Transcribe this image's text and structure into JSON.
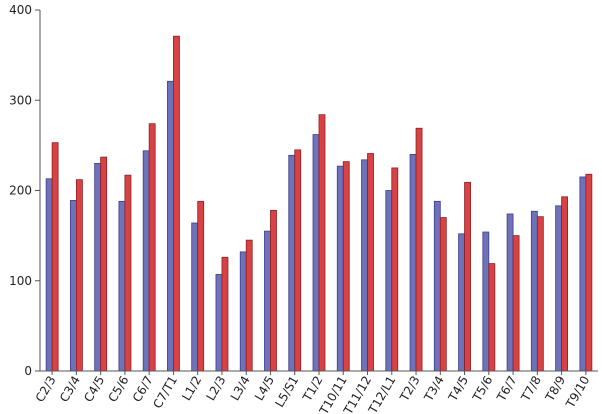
{
  "chart_data": {
    "type": "bar",
    "title": "",
    "xlabel": "",
    "ylabel": "",
    "ylim": [
      0,
      400
    ],
    "yticks": [
      0,
      100,
      200,
      300,
      400
    ],
    "grid": false,
    "categories": [
      "C2/3",
      "C3/4",
      "C4/5",
      "C5/6",
      "C6/7",
      "C7/T1",
      "L1/2",
      "L2/3",
      "L3/4",
      "L4/5",
      "L5/S1",
      "T1/2",
      "T10/11",
      "T11/12",
      "T12/L1",
      "T2/3",
      "T3/4",
      "T4/5",
      "T5/6",
      "T6/7",
      "T7/8",
      "T8/9",
      "T9/10"
    ],
    "series": [
      {
        "values": [
          213,
          189,
          230,
          188,
          244,
          321,
          164,
          107,
          132,
          155,
          239,
          262,
          227,
          234,
          200,
          240,
          188,
          152,
          154,
          174,
          177,
          183,
          215
        ]
      },
      {
        "values": [
          253,
          212,
          237,
          217,
          274,
          371,
          188,
          126,
          145,
          178,
          245,
          284,
          232,
          241,
          225,
          269,
          170,
          209,
          119,
          150,
          171,
          193,
          218
        ]
      }
    ]
  },
  "colors": {
    "series_1_fill": "#6f72b8",
    "series_1_stroke": "#3b3f8e",
    "series_2_fill": "#d94245",
    "series_2_stroke": "#8e1f22",
    "axis": "#555555"
  }
}
